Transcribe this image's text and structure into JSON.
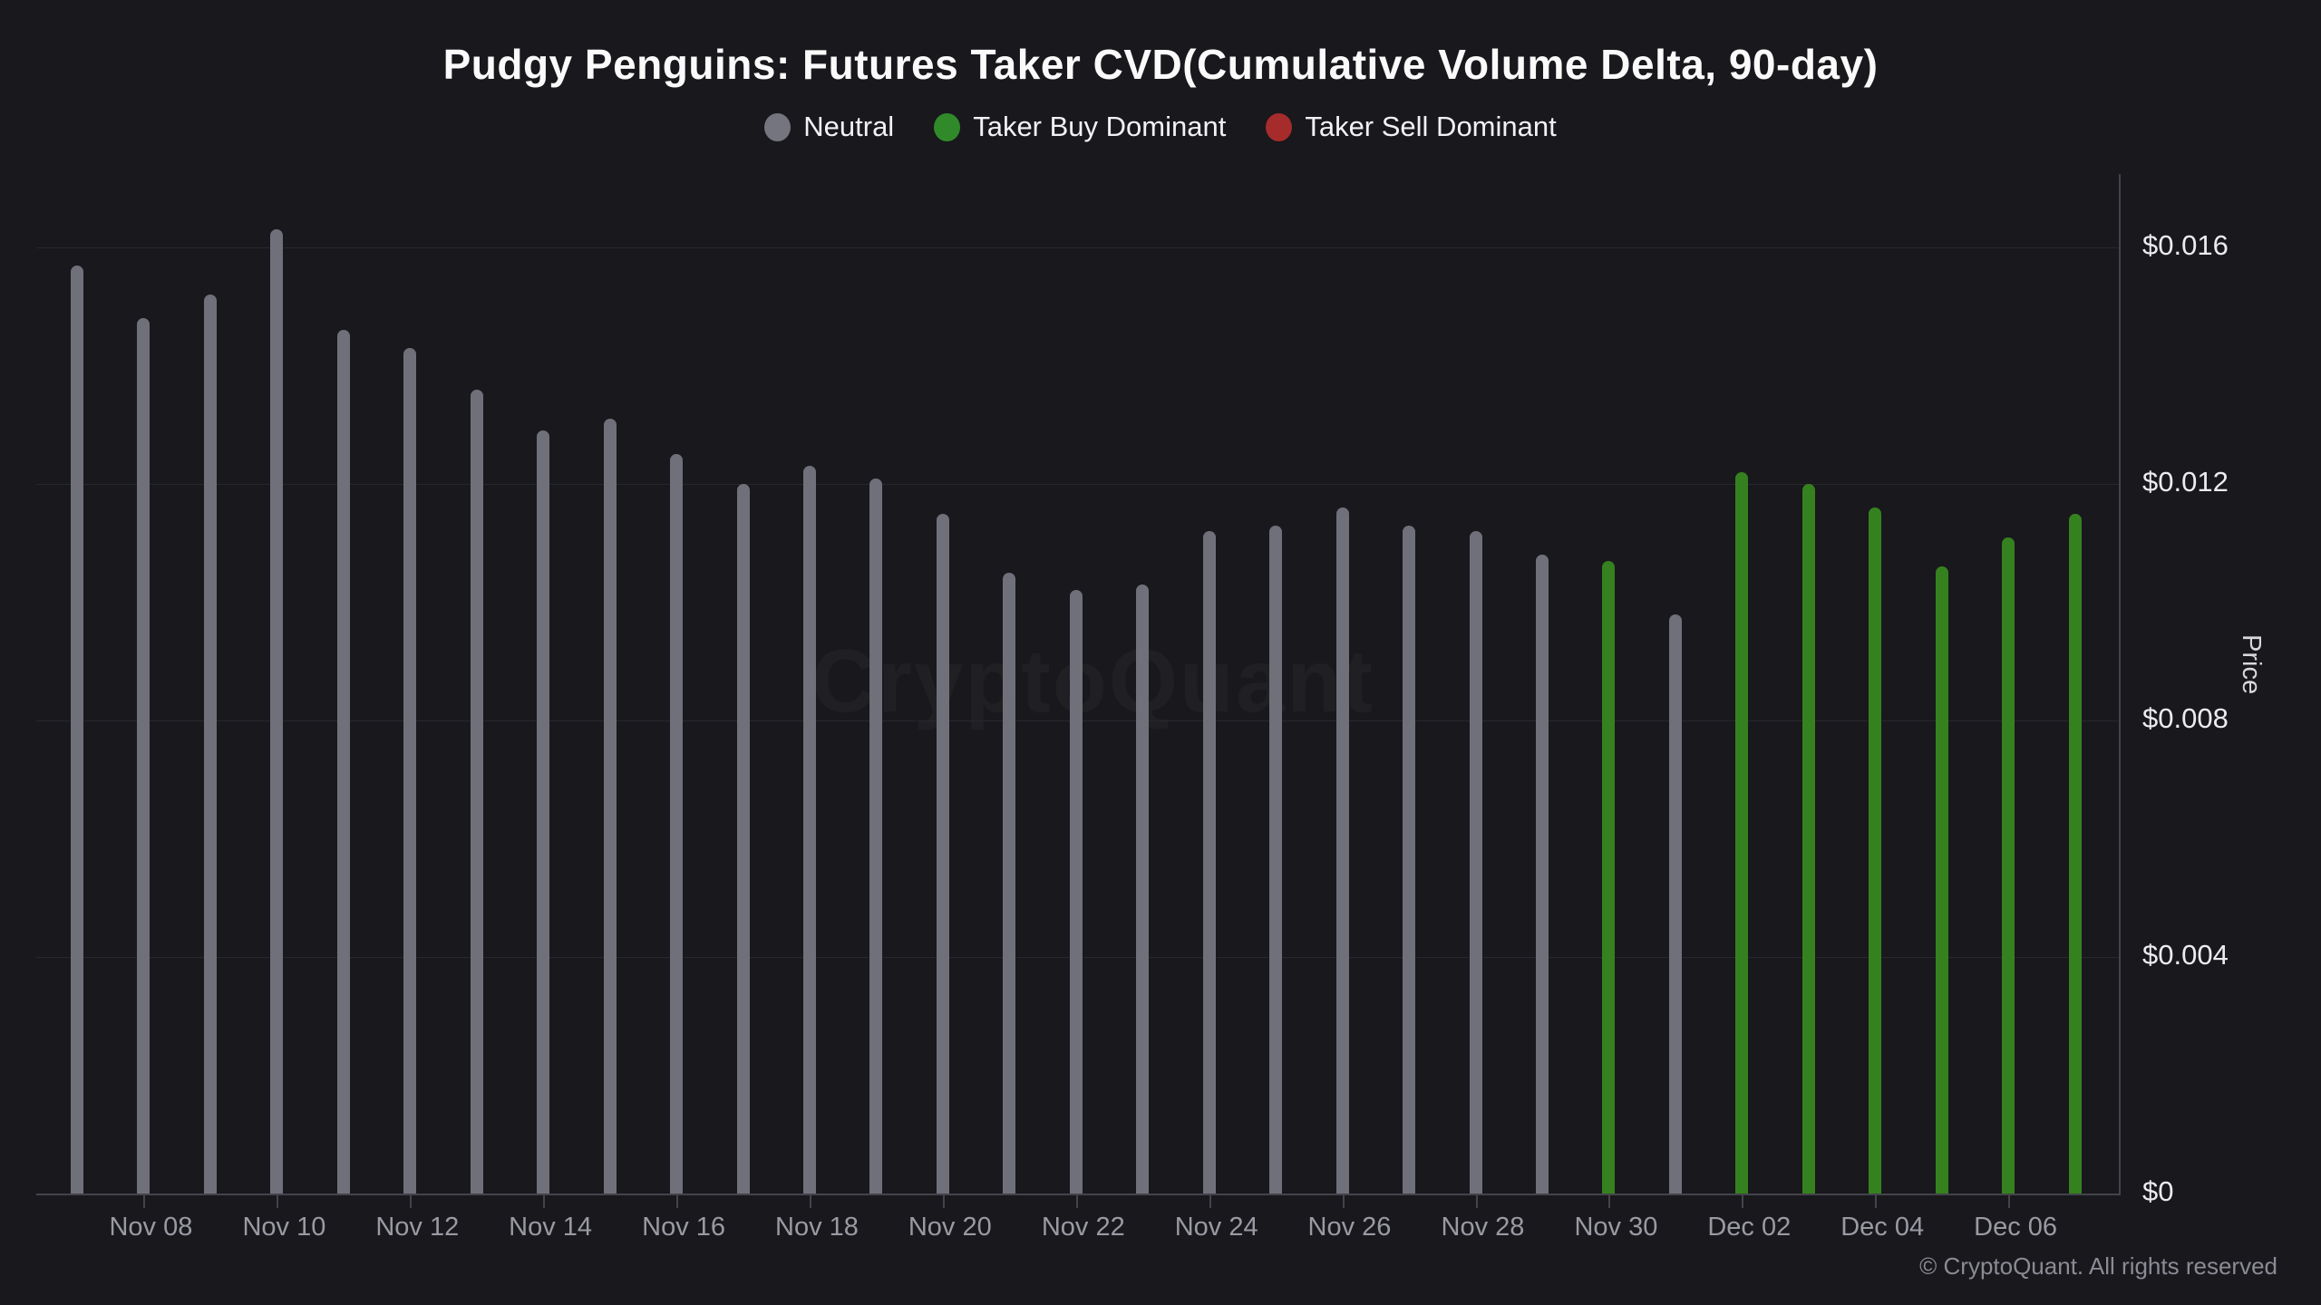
{
  "title": "Pudgy Penguins: Futures Taker CVD(Cumulative Volume Delta, 90-day)",
  "legend": [
    {
      "key": "neutral",
      "label": "Neutral",
      "color": "#75757f"
    },
    {
      "key": "buy",
      "label": "Taker Buy Dominant",
      "color": "#318a2a"
    },
    {
      "key": "sell",
      "label": "Taker Sell Dominant",
      "color": "#a62b2b"
    }
  ],
  "watermark": "CryptoQuant",
  "footer": {
    "copyright": "© CryptoQuant. All rights reserved"
  },
  "chart_data": {
    "type": "bar",
    "title": "Pudgy Penguins: Futures Taker CVD(Cumulative Volume Delta, 90-day)",
    "xlabel": "",
    "ylabel": "Price",
    "grid": "horizontal",
    "legend_position": "top",
    "ylim": [
      0,
      0.0176
    ],
    "categories": [
      "Nov 07",
      "Nov 08",
      "Nov 09",
      "Nov 10",
      "Nov 11",
      "Nov 12",
      "Nov 13",
      "Nov 14",
      "Nov 15",
      "Nov 16",
      "Nov 17",
      "Nov 18",
      "Nov 19",
      "Nov 20",
      "Nov 21",
      "Nov 22",
      "Nov 23",
      "Nov 24",
      "Nov 25",
      "Nov 26",
      "Nov 27",
      "Nov 28",
      "Nov 29",
      "Nov 30",
      "Dec 01",
      "Dec 02",
      "Dec 03",
      "Dec 04",
      "Dec 05",
      "Dec 06",
      "Dec 07"
    ],
    "series": [
      {
        "name": "Price",
        "values": [
          0.0157,
          0.0148,
          0.0152,
          0.0163,
          0.0146,
          0.0143,
          0.0136,
          0.0129,
          0.0131,
          0.0125,
          0.012,
          0.0123,
          0.0121,
          0.0115,
          0.0105,
          0.0102,
          0.0103,
          0.0112,
          0.0113,
          0.0116,
          0.0113,
          0.0112,
          0.0108,
          0.0107,
          0.0098,
          0.0122,
          0.012,
          0.0116,
          0.0106,
          0.0111,
          0.0115
        ]
      }
    ],
    "bar_status": [
      "neutral",
      "neutral",
      "neutral",
      "neutral",
      "neutral",
      "neutral",
      "neutral",
      "neutral",
      "neutral",
      "neutral",
      "neutral",
      "neutral",
      "neutral",
      "neutral",
      "neutral",
      "neutral",
      "neutral",
      "neutral",
      "neutral",
      "neutral",
      "neutral",
      "neutral",
      "neutral",
      "buy",
      "neutral",
      "buy",
      "buy",
      "buy",
      "buy",
      "buy",
      "buy"
    ],
    "status_colors": {
      "neutral": "#70707b",
      "buy": "#36811f",
      "sell": "#a62b2b"
    },
    "x_tick_labels": [
      "Nov 08",
      "Nov 10",
      "Nov 12",
      "Nov 14",
      "Nov 16",
      "Nov 18",
      "Nov 20",
      "Nov 22",
      "Nov 24",
      "Nov 26",
      "Nov 28",
      "Nov 30",
      "Dec 02",
      "Dec 04",
      "Dec 06"
    ],
    "y_ticks": [
      {
        "value": 0.016,
        "label": "$0.016"
      },
      {
        "value": 0.012,
        "label": "$0.012"
      },
      {
        "value": 0.008,
        "label": "$0.008"
      },
      {
        "value": 0.004,
        "label": "$0.004"
      },
      {
        "value": 0,
        "label": "$0"
      }
    ]
  }
}
